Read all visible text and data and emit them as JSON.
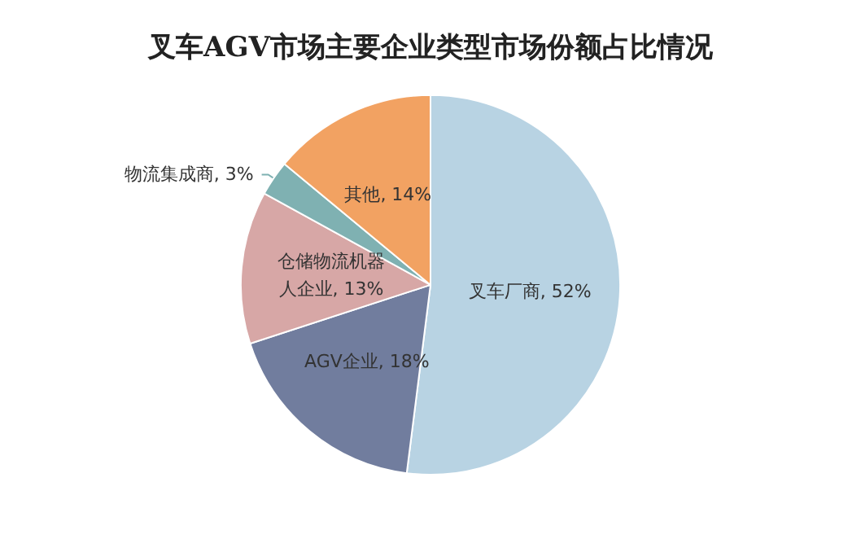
{
  "chart_data": {
    "type": "pie",
    "title": "叉车AGV市场主要企业类型市场份额占比情况",
    "categories": [
      "叉车厂商",
      "AGV企业",
      "仓储物流机器人企业",
      "物流集成商",
      "其他"
    ],
    "values": [
      52,
      18,
      13,
      3,
      14
    ],
    "value_labels": [
      "52%",
      "18%",
      "13%",
      "3%",
      "14%"
    ],
    "colors": [
      "#b8d3e3",
      "#717d9e",
      "#d7a7a6",
      "#7fb1b2",
      "#f2a262"
    ],
    "legend": false
  }
}
